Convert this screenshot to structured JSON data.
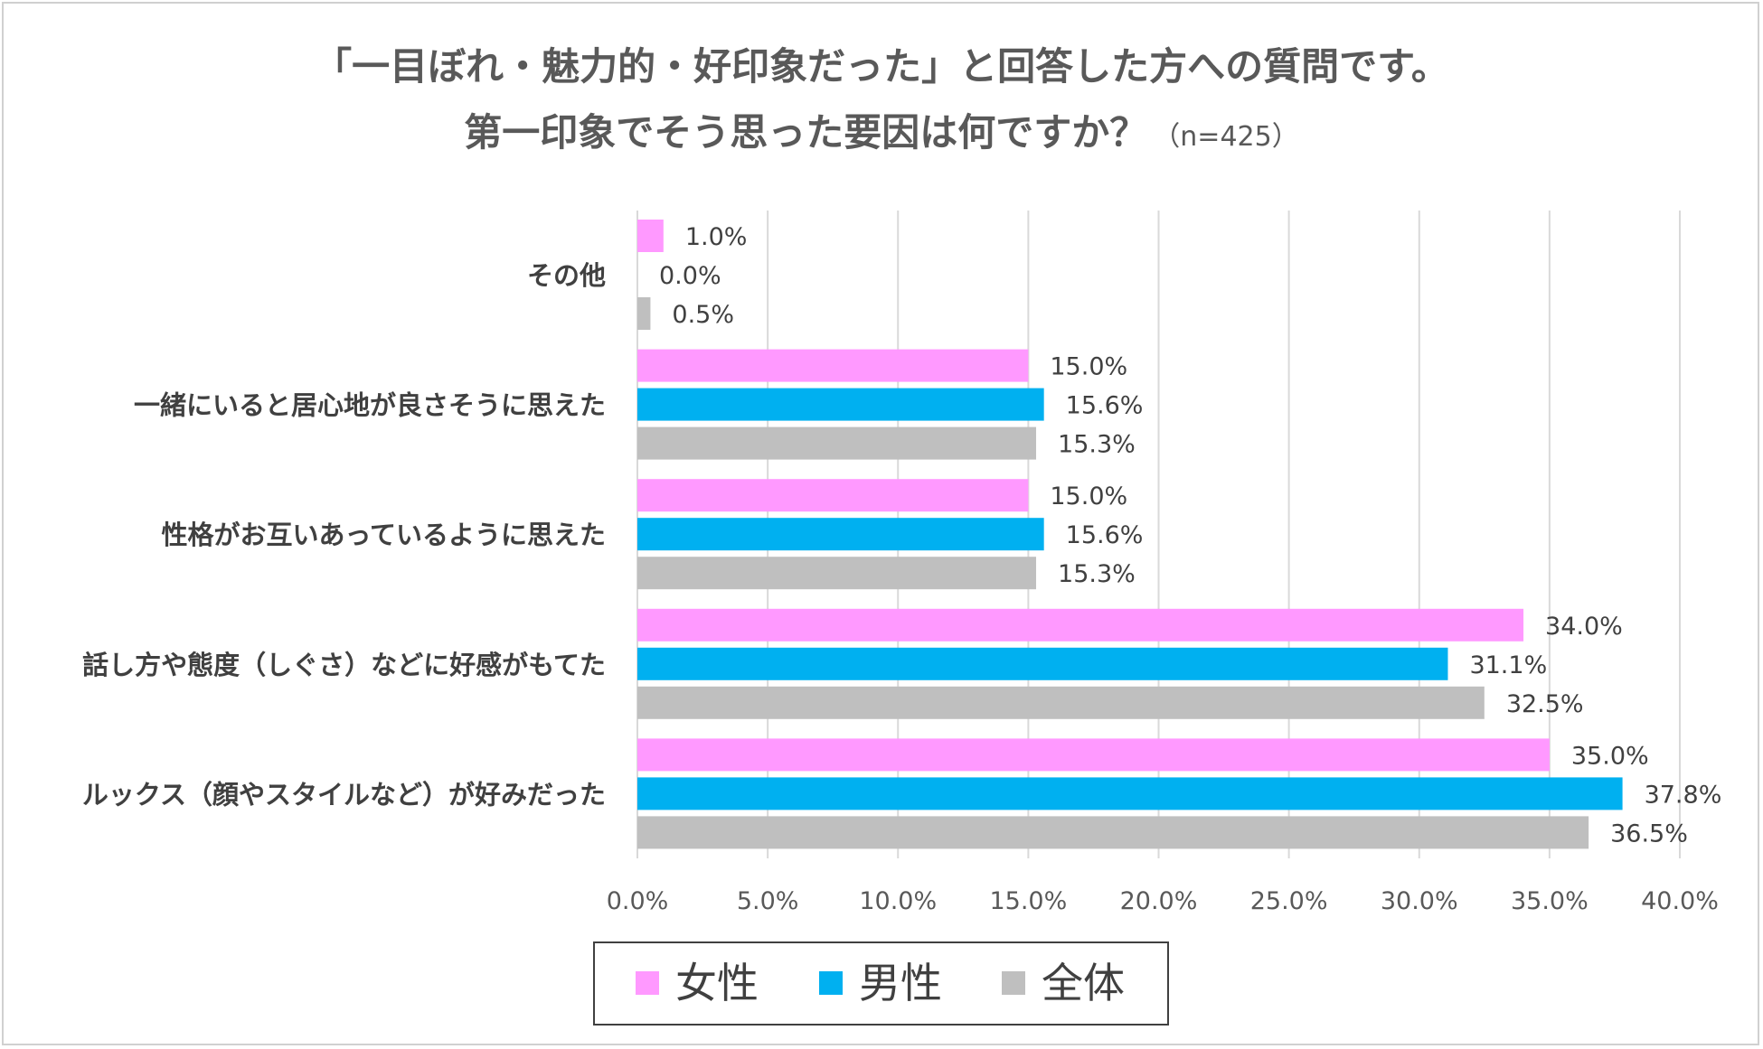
{
  "chart_data": {
    "type": "bar",
    "orientation": "horizontal",
    "title": [
      "「一目ぼれ・魅力的・好印象だった」と回答した方への質問です。",
      "第一印象でそう思った要因は何ですか？"
    ],
    "title_note": "（n=425）",
    "categories": [
      "その他",
      "一緒にいると居心地が良さそうに思えた",
      "性格がお互いあっているように思えた",
      "話し方や態度（しぐさ）などに好感がもてた",
      "ルックス（顔やスタイルなど）が好みだった"
    ],
    "series": [
      {
        "name": "女性",
        "color": "#FF99FF",
        "values": [
          1.0,
          15.0,
          15.0,
          34.0,
          35.0
        ],
        "labels": [
          "1.0%",
          "15.0%",
          "15.0%",
          "34.0%",
          "35.0%"
        ]
      },
      {
        "name": "男性",
        "color": "#00B0F0",
        "values": [
          0.0,
          15.6,
          15.6,
          31.1,
          37.8
        ],
        "labels": [
          "0.0%",
          "15.6%",
          "15.6%",
          "31.1%",
          "37.8%"
        ]
      },
      {
        "name": "全体",
        "color": "#BFBFBF",
        "values": [
          0.5,
          15.3,
          15.3,
          32.5,
          36.5
        ],
        "labels": [
          "0.5%",
          "15.3%",
          "15.3%",
          "32.5%",
          "36.5%"
        ]
      }
    ],
    "xlim": [
      0,
      40
    ],
    "xticks": [
      "0.0%",
      "5.0%",
      "10.0%",
      "15.0%",
      "20.0%",
      "25.0%",
      "30.0%",
      "35.0%",
      "40.0%"
    ],
    "grid": true,
    "legend_position": "bottom"
  }
}
